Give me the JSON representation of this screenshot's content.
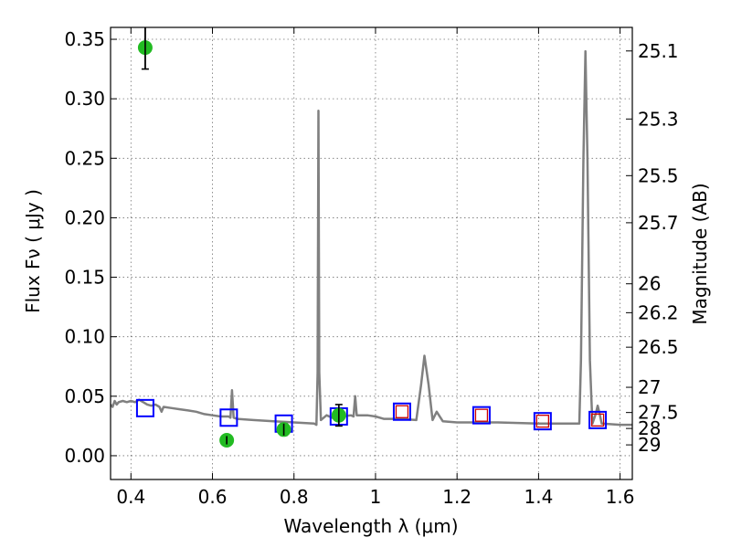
{
  "chart_data": {
    "type": "scatter",
    "xlabel": "Wavelength  λ (μm)",
    "ylabel": "Flux  Fν ( μJy )",
    "ylabel_right": "Magnitude (AB)",
    "xlim": [
      0.35,
      1.63
    ],
    "ylim": [
      -0.02,
      0.36
    ],
    "grid": true,
    "x_ticks": [
      {
        "value": 0.4,
        "label": "0.4"
      },
      {
        "value": 0.6,
        "label": "0.6"
      },
      {
        "value": 0.8,
        "label": "0.8"
      },
      {
        "value": 1.0,
        "label": "1"
      },
      {
        "value": 1.2,
        "label": "1.2"
      },
      {
        "value": 1.4,
        "label": "1.4"
      },
      {
        "value": 1.6,
        "label": "1.6"
      }
    ],
    "y_ticks": [
      {
        "value": 0.0,
        "label": "0.00"
      },
      {
        "value": 0.05,
        "label": "0.05"
      },
      {
        "value": 0.1,
        "label": "0.10"
      },
      {
        "value": 0.15,
        "label": "0.15"
      },
      {
        "value": 0.2,
        "label": "0.20"
      },
      {
        "value": 0.25,
        "label": "0.25"
      },
      {
        "value": 0.3,
        "label": "0.30"
      },
      {
        "value": 0.35,
        "label": "0.35"
      }
    ],
    "y2_ticks": [
      {
        "flux": 0.3402,
        "label": "25.1"
      },
      {
        "flux": 0.283,
        "label": "25.3"
      },
      {
        "flux": 0.2354,
        "label": "25.5"
      },
      {
        "flux": 0.1958,
        "label": "25.7"
      },
      {
        "flux": 0.1445,
        "label": "26"
      },
      {
        "flux": 0.1202,
        "label": "26.2"
      },
      {
        "flux": 0.0912,
        "label": "26.5"
      },
      {
        "flux": 0.0575,
        "label": "27"
      },
      {
        "flux": 0.0363,
        "label": "27.5"
      },
      {
        "flux": 0.0229,
        "label": "28"
      },
      {
        "flux": 0.0091,
        "label": "29"
      }
    ],
    "series": [
      {
        "kind": "line",
        "color": "#808080",
        "points": [
          [
            0.35,
            0.043
          ],
          [
            0.355,
            0.041
          ],
          [
            0.36,
            0.046
          ],
          [
            0.365,
            0.043
          ],
          [
            0.37,
            0.045
          ],
          [
            0.38,
            0.046
          ],
          [
            0.39,
            0.045
          ],
          [
            0.4,
            0.046
          ],
          [
            0.41,
            0.045
          ],
          [
            0.42,
            0.047
          ],
          [
            0.43,
            0.045
          ],
          [
            0.44,
            0.043
          ],
          [
            0.45,
            0.042
          ],
          [
            0.46,
            0.043
          ],
          [
            0.47,
            0.041
          ],
          [
            0.475,
            0.037
          ],
          [
            0.48,
            0.041
          ],
          [
            0.5,
            0.04
          ],
          [
            0.52,
            0.039
          ],
          [
            0.54,
            0.038
          ],
          [
            0.56,
            0.037
          ],
          [
            0.58,
            0.035
          ],
          [
            0.6,
            0.034
          ],
          [
            0.62,
            0.033
          ],
          [
            0.64,
            0.033
          ],
          [
            0.644,
            0.032
          ],
          [
            0.648,
            0.055
          ],
          [
            0.652,
            0.032
          ],
          [
            0.66,
            0.031
          ],
          [
            0.7,
            0.03
          ],
          [
            0.75,
            0.029
          ],
          [
            0.8,
            0.028
          ],
          [
            0.85,
            0.027
          ],
          [
            0.855,
            0.026
          ],
          [
            0.858,
            0.07
          ],
          [
            0.86,
            0.29
          ],
          [
            0.862,
            0.07
          ],
          [
            0.866,
            0.03
          ],
          [
            0.88,
            0.034
          ],
          [
            0.9,
            0.031
          ],
          [
            0.92,
            0.033
          ],
          [
            0.94,
            0.034
          ],
          [
            0.946,
            0.033
          ],
          [
            0.95,
            0.05
          ],
          [
            0.954,
            0.034
          ],
          [
            0.98,
            0.034
          ],
          [
            1.0,
            0.033
          ],
          [
            1.02,
            0.031
          ],
          [
            1.06,
            0.031
          ],
          [
            1.1,
            0.03
          ],
          [
            1.112,
            0.06
          ],
          [
            1.12,
            0.084
          ],
          [
            1.13,
            0.06
          ],
          [
            1.14,
            0.03
          ],
          [
            1.15,
            0.037
          ],
          [
            1.165,
            0.029
          ],
          [
            1.2,
            0.028
          ],
          [
            1.3,
            0.028
          ],
          [
            1.4,
            0.027
          ],
          [
            1.5,
            0.027
          ],
          [
            1.504,
            0.08
          ],
          [
            1.51,
            0.25
          ],
          [
            1.515,
            0.34
          ],
          [
            1.52,
            0.25
          ],
          [
            1.526,
            0.08
          ],
          [
            1.532,
            0.027
          ],
          [
            1.54,
            0.035
          ],
          [
            1.545,
            0.042
          ],
          [
            1.55,
            0.035
          ],
          [
            1.555,
            0.027
          ],
          [
            1.6,
            0.026
          ],
          [
            1.63,
            0.026
          ]
        ]
      },
      {
        "kind": "marker",
        "marker": "square",
        "edgecolor": "#0000ff",
        "points": [
          [
            0.435,
            0.04
          ],
          [
            0.64,
            0.032
          ],
          [
            0.775,
            0.027
          ],
          [
            0.91,
            0.033
          ],
          [
            1.065,
            0.037
          ],
          [
            1.26,
            0.034
          ],
          [
            1.41,
            0.029
          ],
          [
            1.545,
            0.03
          ]
        ]
      },
      {
        "kind": "marker",
        "marker": "square",
        "edgecolor": "#cc0000",
        "points": [
          [
            1.065,
            0.037
          ],
          [
            1.26,
            0.034
          ],
          [
            1.41,
            0.029
          ],
          [
            1.545,
            0.03
          ]
        ]
      },
      {
        "kind": "marker",
        "marker": "circle",
        "color": "#22bb22",
        "points": [
          {
            "x": 0.435,
            "y": 0.343,
            "err": 0.018
          },
          {
            "x": 0.635,
            "y": 0.013,
            "err": 0.0035
          },
          {
            "x": 0.775,
            "y": 0.022,
            "err": 0.005
          },
          {
            "x": 0.91,
            "y": 0.034,
            "err": 0.009
          }
        ]
      }
    ]
  }
}
